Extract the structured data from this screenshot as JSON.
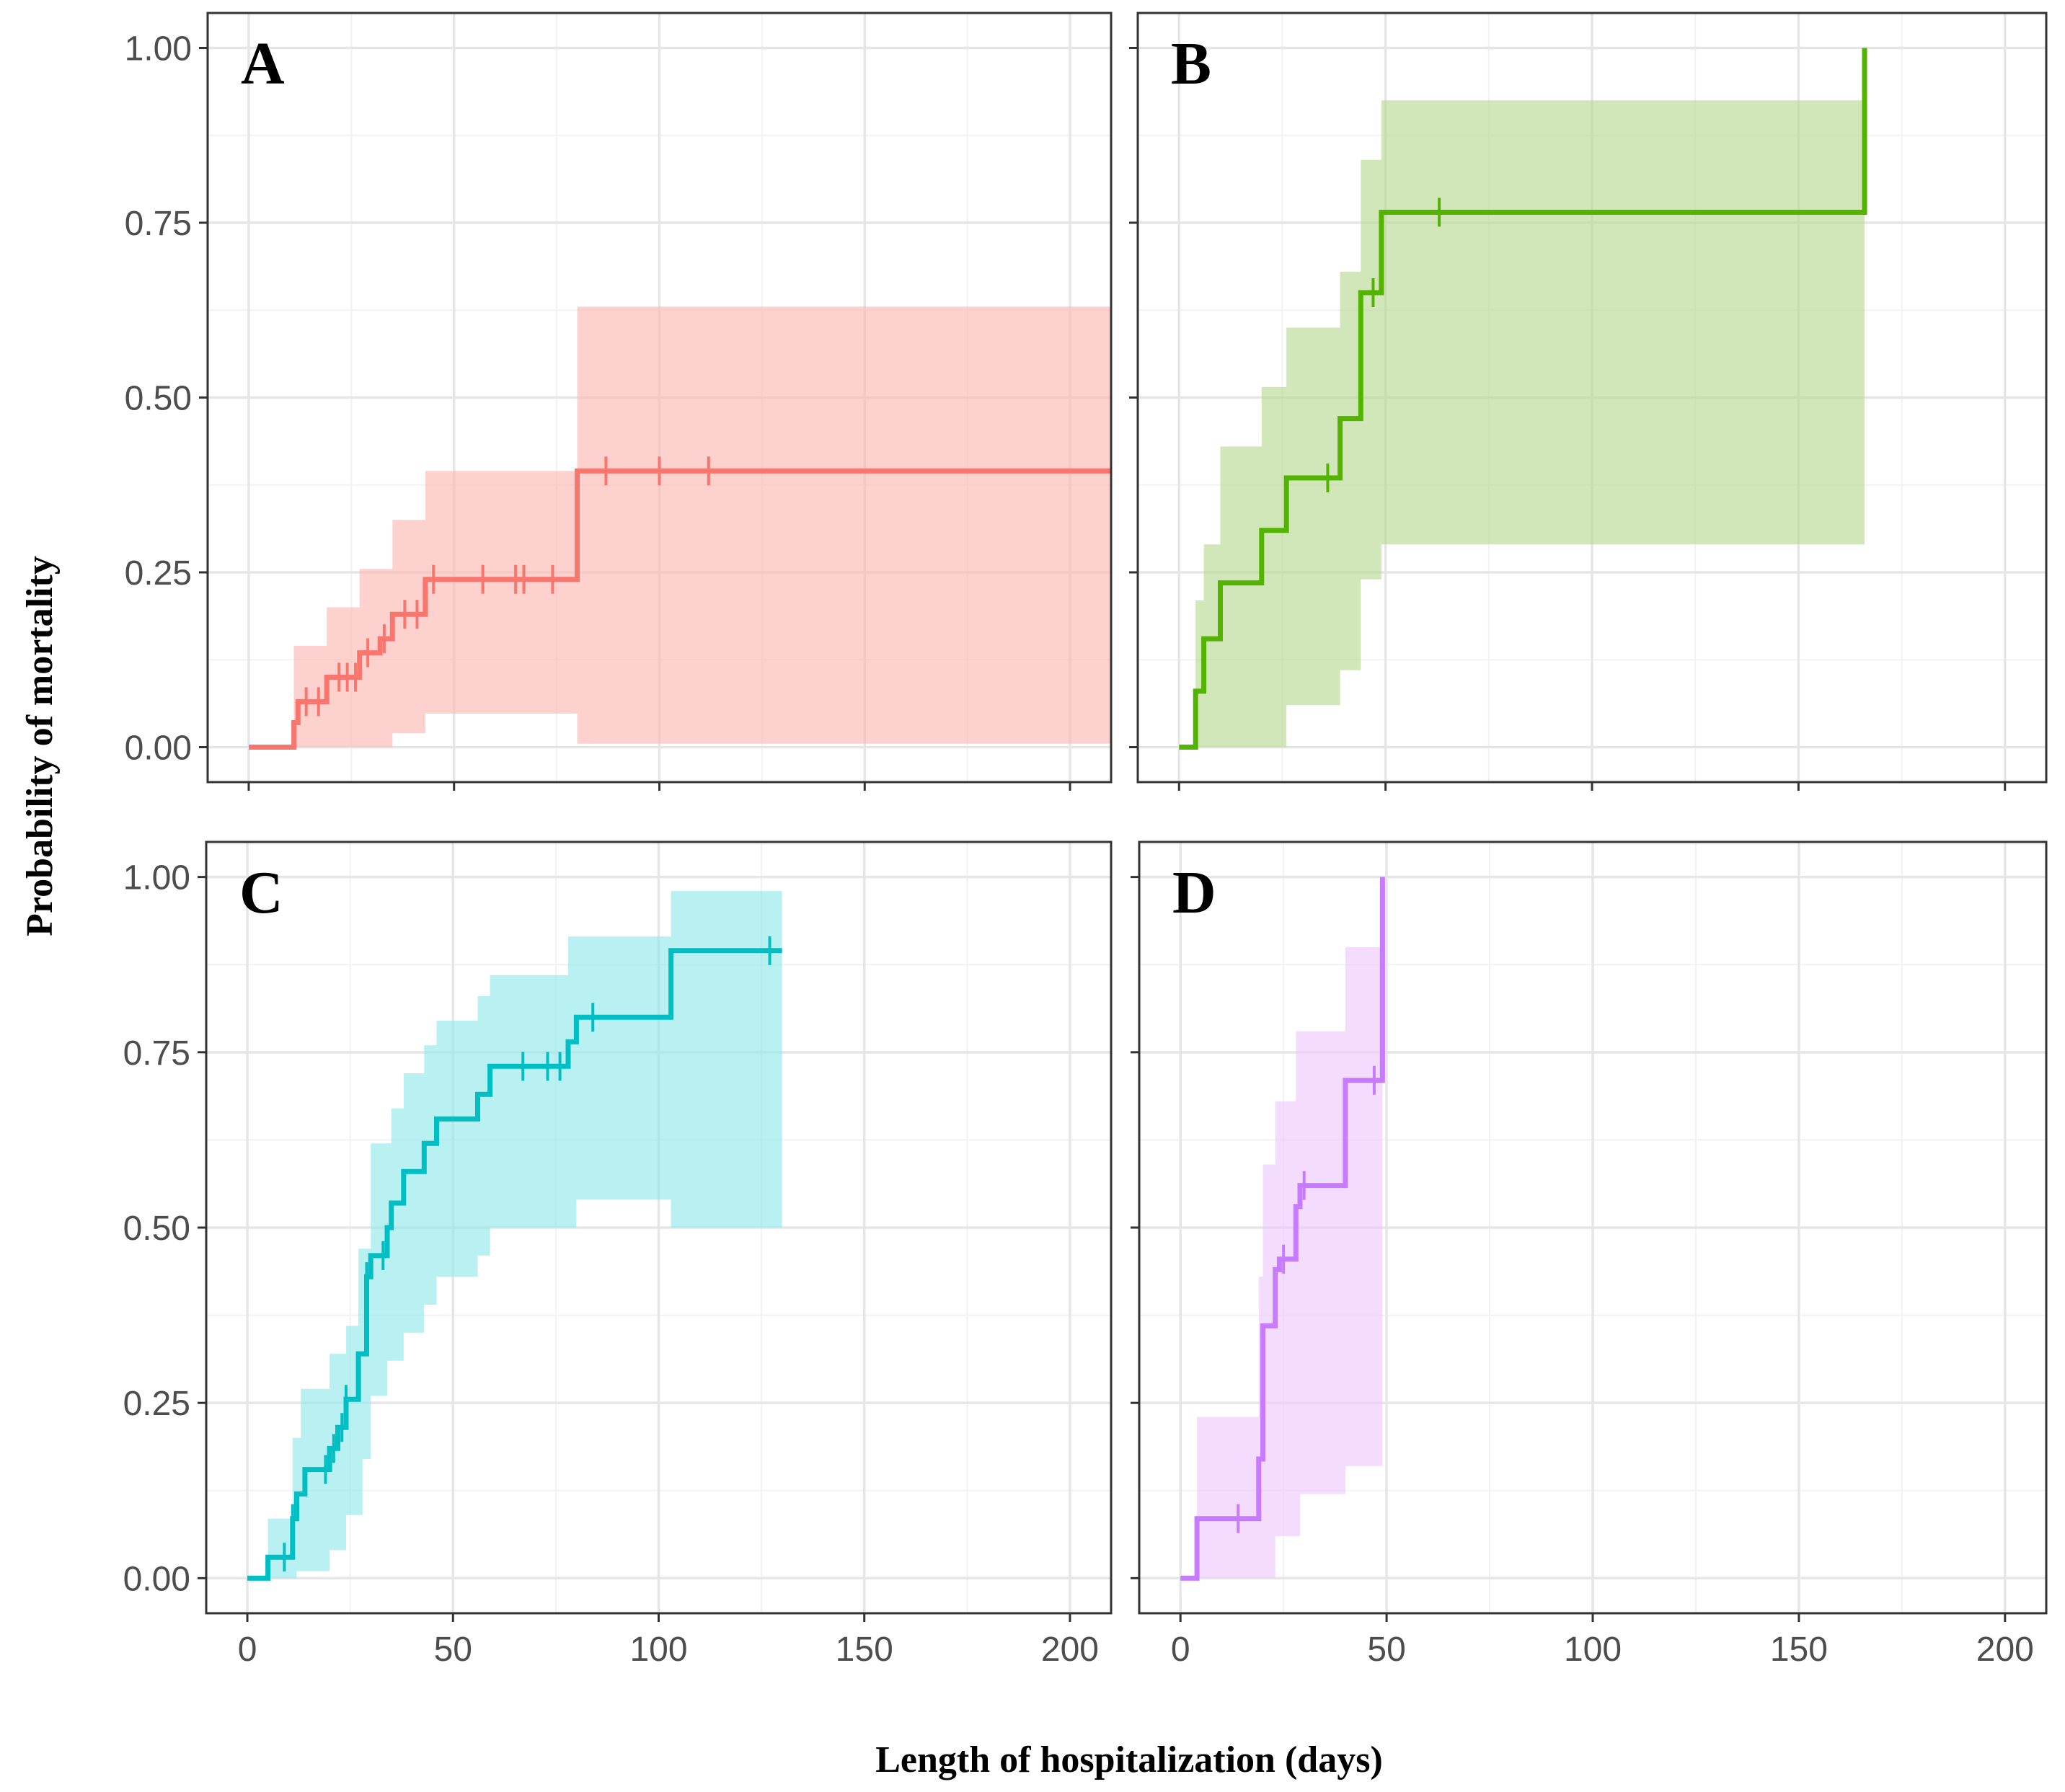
{
  "figure": {
    "ylabel": "Probability of mortality",
    "xlabel": "Length of hospitalization (days)"
  },
  "chart_data": [
    {
      "type": "line",
      "subtype": "kaplan-meier-cumulative-incidence",
      "panel_label": "A",
      "color": "#f8766d",
      "fill_color": "#fbb4ae",
      "xlim": [
        -10,
        210
      ],
      "ylim": [
        -0.05,
        1.05
      ],
      "xticks": [
        0,
        50,
        100,
        150,
        200
      ],
      "yticks": [
        0.0,
        0.25,
        0.5,
        0.75,
        1.0
      ],
      "ytick_labels": [
        "0.00",
        "0.25",
        "0.50",
        "0.75",
        "1.00"
      ],
      "show_x_tick_labels": false,
      "show_y_tick_labels": true,
      "x_end": 210,
      "steps": [
        [
          0,
          0.0
        ],
        [
          11,
          0.035
        ],
        [
          12,
          0.065
        ],
        [
          19,
          0.1
        ],
        [
          27,
          0.135
        ],
        [
          32,
          0.155
        ],
        [
          35,
          0.19
        ],
        [
          43,
          0.24
        ],
        [
          80,
          0.395
        ]
      ],
      "upper": [
        [
          0,
          0.0
        ],
        [
          11,
          0.145
        ],
        [
          19,
          0.2
        ],
        [
          27,
          0.255
        ],
        [
          35,
          0.325
        ],
        [
          43,
          0.395
        ],
        [
          80,
          0.63
        ]
      ],
      "lower": [
        [
          0,
          0.0
        ],
        [
          11,
          0.0
        ],
        [
          35,
          0.02
        ],
        [
          43,
          0.048
        ],
        [
          80,
          0.005
        ]
      ],
      "censor_x": [
        14,
        17,
        22,
        24,
        26,
        29,
        33,
        38,
        41,
        45,
        57,
        65,
        67,
        74,
        87,
        100,
        112
      ]
    },
    {
      "type": "line",
      "subtype": "kaplan-meier-cumulative-incidence",
      "panel_label": "B",
      "color": "#53b400",
      "fill_color": "#b5d98e",
      "xlim": [
        -10,
        210
      ],
      "ylim": [
        -0.05,
        1.05
      ],
      "xticks": [
        0,
        50,
        100,
        150,
        200
      ],
      "yticks": [
        0.0,
        0.25,
        0.5,
        0.75,
        1.0
      ],
      "ytick_labels": [
        "0.00",
        "0.25",
        "0.50",
        "0.75",
        "1.00"
      ],
      "show_x_tick_labels": false,
      "show_y_tick_labels": false,
      "x_end": 166,
      "steps": [
        [
          0,
          0.0
        ],
        [
          4,
          0.08
        ],
        [
          6,
          0.155
        ],
        [
          10,
          0.235
        ],
        [
          20,
          0.31
        ],
        [
          26,
          0.385
        ],
        [
          39,
          0.47
        ],
        [
          44,
          0.65
        ],
        [
          49,
          0.765
        ],
        [
          166,
          1.0
        ]
      ],
      "upper": [
        [
          0,
          0.0
        ],
        [
          4,
          0.21
        ],
        [
          6,
          0.29
        ],
        [
          10,
          0.43
        ],
        [
          20,
          0.515
        ],
        [
          26,
          0.6
        ],
        [
          39,
          0.68
        ],
        [
          44,
          0.84
        ],
        [
          49,
          0.925
        ]
      ],
      "lower": [
        [
          0,
          0.0
        ],
        [
          26,
          0.06
        ],
        [
          39,
          0.11
        ],
        [
          44,
          0.24
        ],
        [
          49,
          0.29
        ]
      ],
      "censor_x": [
        36,
        47,
        63
      ]
    },
    {
      "type": "line",
      "subtype": "kaplan-meier-cumulative-incidence",
      "panel_label": "C",
      "color": "#00bfc4",
      "fill_color": "#8ee6ea",
      "xlim": [
        -10,
        210
      ],
      "ylim": [
        -0.05,
        1.05
      ],
      "xticks": [
        0,
        50,
        100,
        150,
        200
      ],
      "yticks": [
        0.0,
        0.25,
        0.5,
        0.75,
        1.0
      ],
      "ytick_labels": [
        "0.00",
        "0.25",
        "0.50",
        "0.75",
        "1.00"
      ],
      "show_x_tick_labels": true,
      "show_y_tick_labels": true,
      "x_end": 130,
      "steps": [
        [
          0,
          0.0
        ],
        [
          5,
          0.03
        ],
        [
          11,
          0.085
        ],
        [
          12,
          0.12
        ],
        [
          14,
          0.155
        ],
        [
          20,
          0.185
        ],
        [
          22,
          0.215
        ],
        [
          24,
          0.255
        ],
        [
          27,
          0.32
        ],
        [
          29,
          0.43
        ],
        [
          30,
          0.46
        ],
        [
          34,
          0.5
        ],
        [
          35,
          0.535
        ],
        [
          38,
          0.58
        ],
        [
          43,
          0.62
        ],
        [
          46,
          0.655
        ],
        [
          56,
          0.69
        ],
        [
          59,
          0.73
        ],
        [
          78,
          0.765
        ],
        [
          80,
          0.8
        ],
        [
          103,
          0.895
        ]
      ],
      "upper": [
        [
          0,
          0.0
        ],
        [
          5,
          0.085
        ],
        [
          11,
          0.2
        ],
        [
          13,
          0.27
        ],
        [
          20,
          0.32
        ],
        [
          24,
          0.36
        ],
        [
          27,
          0.47
        ],
        [
          30,
          0.62
        ],
        [
          35,
          0.67
        ],
        [
          38,
          0.72
        ],
        [
          43,
          0.76
        ],
        [
          46,
          0.795
        ],
        [
          56,
          0.83
        ],
        [
          59,
          0.86
        ],
        [
          78,
          0.915
        ],
        [
          103,
          0.98
        ],
        [
          128,
          0.98
        ]
      ],
      "lower": [
        [
          0,
          0.0
        ],
        [
          10,
          0.0
        ],
        [
          12,
          0.01
        ],
        [
          20,
          0.04
        ],
        [
          24,
          0.09
        ],
        [
          28,
          0.17
        ],
        [
          30,
          0.26
        ],
        [
          34,
          0.31
        ],
        [
          38,
          0.35
        ],
        [
          43,
          0.39
        ],
        [
          46,
          0.43
        ],
        [
          56,
          0.46
        ],
        [
          59,
          0.5
        ],
        [
          78,
          0.5
        ],
        [
          80,
          0.54
        ],
        [
          103,
          0.5
        ],
        [
          128,
          0.5
        ]
      ],
      "censor_x": [
        9,
        11,
        19,
        21,
        23,
        24,
        29,
        33,
        67,
        73,
        76,
        84,
        127
      ]
    },
    {
      "type": "line",
      "subtype": "kaplan-meier-cumulative-incidence",
      "panel_label": "D",
      "color": "#c77cff",
      "fill_color": "#ecc6fd",
      "xlim": [
        -10,
        210
      ],
      "ylim": [
        -0.05,
        1.05
      ],
      "xticks": [
        0,
        50,
        100,
        150,
        200
      ],
      "yticks": [
        0.0,
        0.25,
        0.5,
        0.75,
        1.0
      ],
      "ytick_labels": [
        "0.00",
        "0.25",
        "0.50",
        "0.75",
        "1.00"
      ],
      "show_x_tick_labels": true,
      "show_y_tick_labels": false,
      "x_end": 49,
      "steps": [
        [
          0,
          0.0
        ],
        [
          4,
          0.085
        ],
        [
          19,
          0.17
        ],
        [
          20,
          0.36
        ],
        [
          23,
          0.44
        ],
        [
          24,
          0.455
        ],
        [
          28,
          0.53
        ],
        [
          29,
          0.56
        ],
        [
          40,
          0.71
        ],
        [
          49,
          1.0
        ]
      ],
      "upper": [
        [
          0,
          0.0
        ],
        [
          4,
          0.23
        ],
        [
          19,
          0.43
        ],
        [
          20,
          0.59
        ],
        [
          23,
          0.68
        ],
        [
          28,
          0.78
        ],
        [
          40,
          0.9
        ],
        [
          49,
          1.0
        ]
      ],
      "lower": [
        [
          0,
          0.0
        ],
        [
          19,
          0.0
        ],
        [
          23,
          0.06
        ],
        [
          29,
          0.12
        ],
        [
          40,
          0.16
        ],
        [
          49,
          0.16
        ]
      ],
      "censor_x": [
        14,
        25,
        30,
        47
      ]
    }
  ]
}
